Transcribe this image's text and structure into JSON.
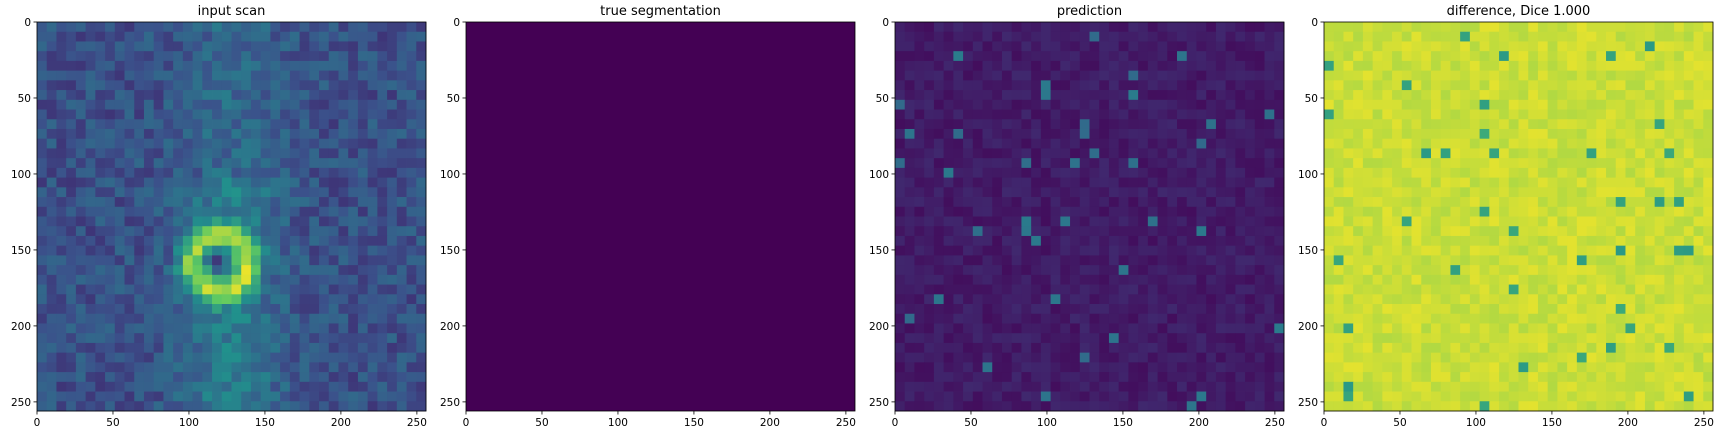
{
  "chart_data": [
    {
      "type": "heatmap",
      "title": "input scan",
      "xlabel": "",
      "ylabel": "",
      "xlim": [
        0,
        256
      ],
      "ylim": [
        256,
        0
      ],
      "xticks": [
        0,
        50,
        100,
        150,
        200,
        250
      ],
      "yticks": [
        0,
        50,
        100,
        150,
        200,
        250
      ],
      "colormap": "viridis",
      "content": "image"
    },
    {
      "type": "heatmap",
      "title": "true segmentation",
      "xlabel": "",
      "ylabel": "",
      "xlim": [
        0,
        256
      ],
      "ylim": [
        256,
        0
      ],
      "xticks": [
        0,
        50,
        100,
        150,
        200,
        250
      ],
      "yticks": [
        0,
        50,
        100,
        150,
        200,
        250
      ],
      "colormap": "viridis",
      "content": "uniform",
      "fill_color": "#440154"
    },
    {
      "type": "heatmap",
      "title": "prediction",
      "xlabel": "",
      "ylabel": "",
      "xlim": [
        0,
        256
      ],
      "ylim": [
        256,
        0
      ],
      "xticks": [
        0,
        50,
        100,
        150,
        200,
        250
      ],
      "yticks": [
        0,
        50,
        100,
        150,
        200,
        250
      ],
      "colormap": "viridis",
      "content": "noise-dark"
    },
    {
      "type": "heatmap",
      "title": "difference, Dice 1.000",
      "xlabel": "",
      "ylabel": "",
      "xlim": [
        0,
        256
      ],
      "ylim": [
        256,
        0
      ],
      "xticks": [
        0,
        50,
        100,
        150,
        200,
        250
      ],
      "yticks": [
        0,
        50,
        100,
        150,
        200,
        250
      ],
      "colormap": "viridis",
      "content": "noise-bright"
    }
  ],
  "colors": {
    "viridis_dark": "#440154",
    "viridis_mid": "#21918c",
    "viridis_bright": "#fde725"
  }
}
